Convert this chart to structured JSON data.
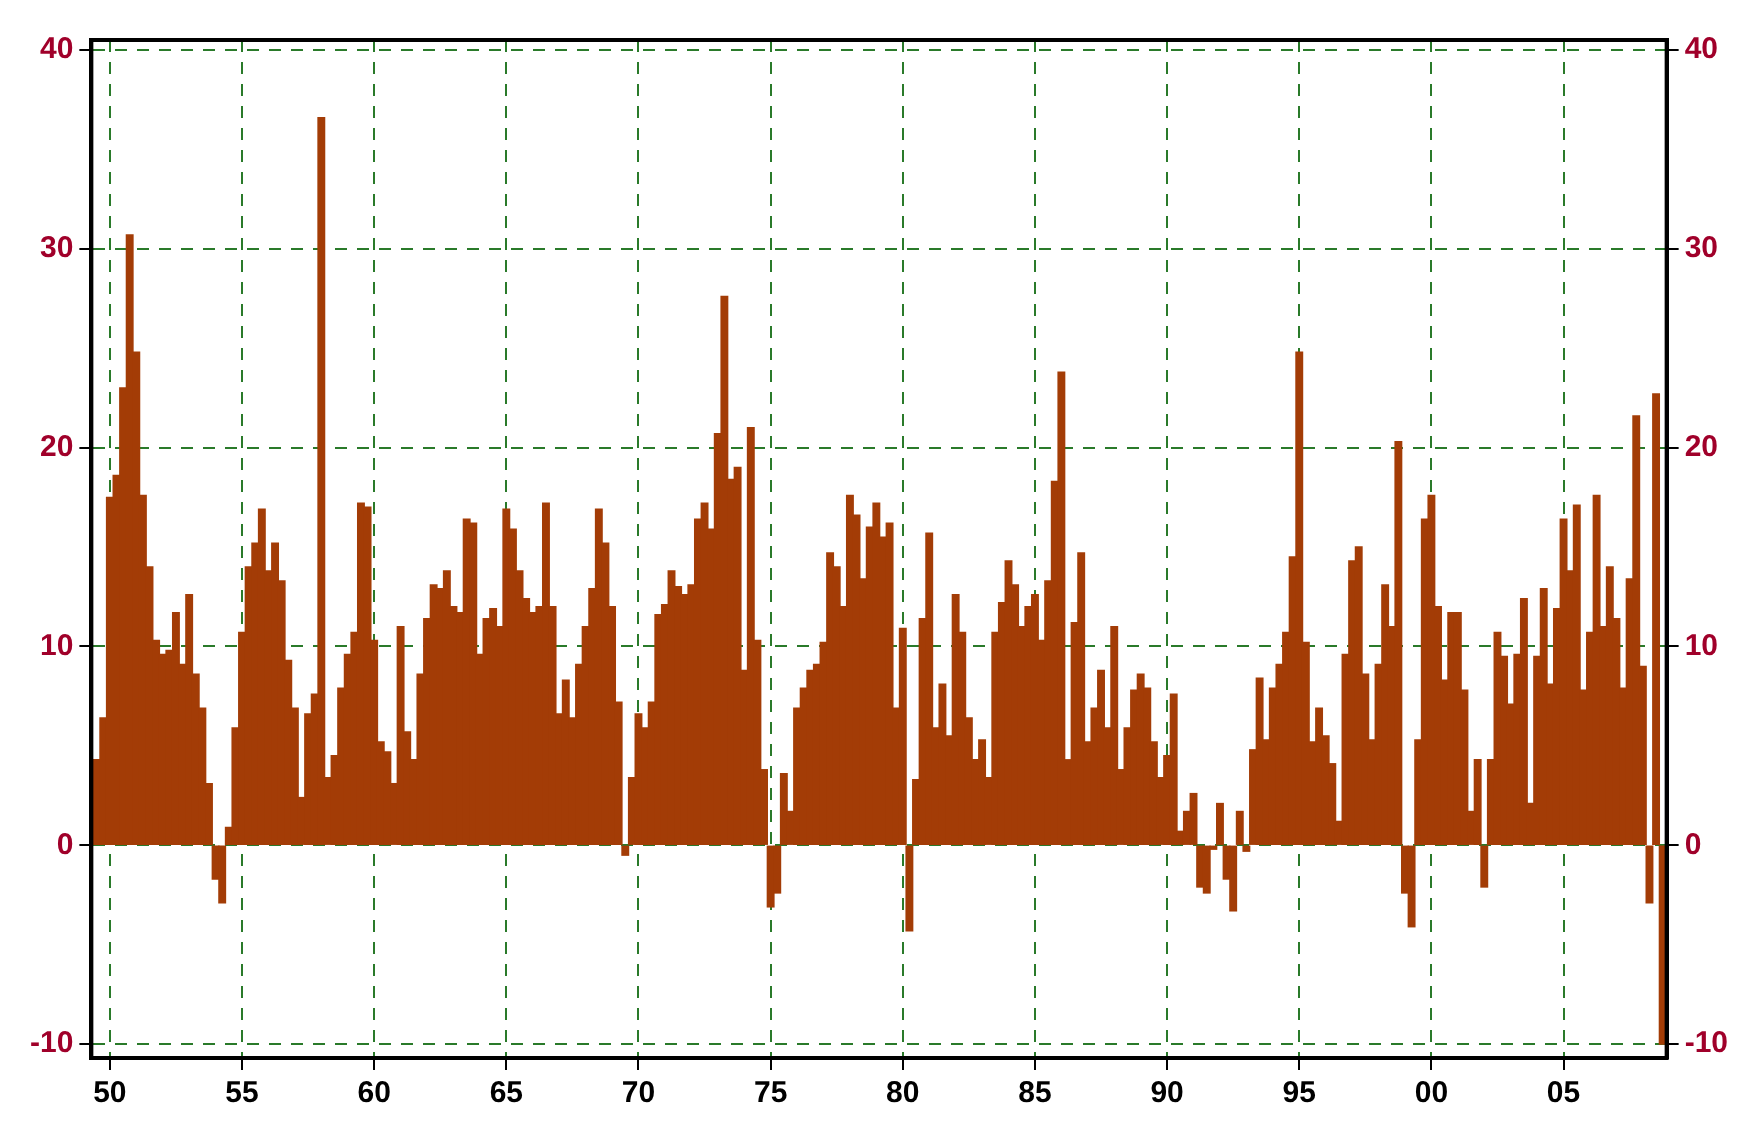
{
  "chart_data": {
    "type": "bar",
    "x": [
      1949.5,
      1949.75,
      1950,
      1950.25,
      1950.5,
      1950.75,
      1951,
      1951.25,
      1951.5,
      1951.75,
      1952,
      1952.25,
      1952.5,
      1952.75,
      1953,
      1953.25,
      1953.5,
      1953.75,
      1954,
      1954.25,
      1954.5,
      1954.75,
      1955,
      1955.25,
      1955.5,
      1955.75,
      1956,
      1956.25,
      1956.5,
      1956.75,
      1957,
      1957.25,
      1957.5,
      1957.75,
      1958,
      1958.25,
      1958.5,
      1958.75,
      1959,
      1959.25,
      1959.5,
      1959.75,
      1960,
      1960.25,
      1960.5,
      1960.75,
      1961,
      1961.25,
      1961.5,
      1961.75,
      1962,
      1962.25,
      1962.5,
      1962.75,
      1963,
      1963.25,
      1963.5,
      1963.75,
      1964,
      1964.25,
      1964.5,
      1964.75,
      1965,
      1965.25,
      1965.5,
      1965.75,
      1966,
      1966.25,
      1966.5,
      1966.75,
      1967,
      1967.25,
      1967.5,
      1967.75,
      1968,
      1968.25,
      1968.5,
      1968.75,
      1969,
      1969.25,
      1969.5,
      1969.75,
      1970,
      1970.25,
      1970.5,
      1970.75,
      1971,
      1971.25,
      1971.5,
      1971.75,
      1972,
      1972.25,
      1972.5,
      1972.75,
      1973,
      1973.25,
      1973.5,
      1973.75,
      1974,
      1974.25,
      1974.5,
      1974.75,
      1975,
      1975.25,
      1975.5,
      1975.75,
      1976,
      1976.25,
      1976.5,
      1976.75,
      1977,
      1977.25,
      1977.5,
      1977.75,
      1978,
      1978.25,
      1978.5,
      1978.75,
      1979,
      1979.25,
      1979.5,
      1979.75,
      1980,
      1980.25,
      1980.5,
      1980.75,
      1981,
      1981.25,
      1981.5,
      1981.75,
      1982,
      1982.25,
      1982.5,
      1982.75,
      1983,
      1983.25,
      1983.5,
      1983.75,
      1984,
      1984.25,
      1984.5,
      1984.75,
      1985,
      1985.25,
      1985.5,
      1985.75,
      1986,
      1986.25,
      1986.5,
      1986.75,
      1987,
      1987.25,
      1987.5,
      1987.75,
      1988,
      1988.25,
      1988.5,
      1988.75,
      1989,
      1989.25,
      1989.5,
      1989.75,
      1990,
      1990.25,
      1990.5,
      1990.75,
      1991,
      1991.25,
      1991.5,
      1991.75,
      1992,
      1992.25,
      1992.5,
      1992.75,
      1993,
      1993.25,
      1993.5,
      1993.75,
      1994,
      1994.25,
      1994.5,
      1994.75,
      1995,
      1995.25,
      1995.5,
      1995.75,
      1996,
      1996.25,
      1996.5,
      1996.75,
      1997,
      1997.25,
      1997.5,
      1997.75,
      1998,
      1998.25,
      1998.5,
      1998.75,
      1999,
      1999.25,
      1999.5,
      1999.75,
      2000,
      2000.25,
      2000.5,
      2000.75,
      2001,
      2001.25,
      2001.5,
      2001.75,
      2002,
      2002.25,
      2002.5,
      2002.75,
      2003,
      2003.25,
      2003.5,
      2003.75,
      2004,
      2004.25,
      2004.5,
      2004.75,
      2005,
      2005.25,
      2005.5,
      2005.75,
      2006,
      2006.25,
      2006.5,
      2006.75,
      2007,
      2007.25,
      2007.5,
      2007.75,
      2008,
      2008.25,
      2008.5,
      2008.75
    ],
    "values": [
      4.3,
      6.4,
      17.5,
      18.6,
      23,
      30.7,
      24.8,
      17.6,
      14,
      10.3,
      9.6,
      9.8,
      11.7,
      9.1,
      12.6,
      8.6,
      6.9,
      3.1,
      -1.7,
      -2.9,
      0.9,
      5.9,
      10.7,
      14,
      15.2,
      16.9,
      13.8,
      15.2,
      13.3,
      9.3,
      6.9,
      2.4,
      6.6,
      7.6,
      36.6,
      3.4,
      4.5,
      7.9,
      9.6,
      10.7,
      17.2,
      17,
      10.3,
      5.2,
      4.7,
      3.1,
      11,
      5.7,
      4.3,
      8.6,
      11.4,
      13.1,
      12.9,
      13.8,
      12,
      11.7,
      16.4,
      16.2,
      9.6,
      11.4,
      11.9,
      11,
      16.9,
      15.9,
      13.8,
      12.4,
      11.7,
      12,
      17.2,
      12,
      6.6,
      8.3,
      6.4,
      9.1,
      11,
      12.9,
      16.9,
      15.2,
      12,
      7.2,
      -0.5,
      3.4,
      6.6,
      5.9,
      7.2,
      11.6,
      12.1,
      13.8,
      13,
      12.6,
      13.1,
      16.4,
      17.2,
      15.9,
      20.7,
      27.6,
      18.4,
      19,
      8.8,
      21,
      10.3,
      3.8,
      -3.1,
      -2.4,
      3.6,
      1.7,
      6.9,
      7.9,
      8.8,
      9.1,
      10.2,
      14.7,
      14,
      12,
      17.6,
      16.6,
      13.4,
      16,
      17.2,
      15.5,
      16.2,
      6.9,
      10.9,
      -4.3,
      3.3,
      11.4,
      15.7,
      5.9,
      8.1,
      5.5,
      12.6,
      10.7,
      6.4,
      4.3,
      5.3,
      3.4,
      10.7,
      12.2,
      14.3,
      13.1,
      11,
      12,
      12.6,
      10.3,
      13.3,
      18.3,
      23.8,
      4.3,
      11.2,
      14.7,
      5.2,
      6.9,
      8.8,
      5.9,
      11,
      3.8,
      5.9,
      7.8,
      8.6,
      7.9,
      5.2,
      3.4,
      4.5,
      7.6,
      0.7,
      1.7,
      2.6,
      -2.1,
      -2.4,
      -0.2,
      2.1,
      -1.7,
      -3.3,
      1.7,
      -0.3,
      4.8,
      8.4,
      5.3,
      7.9,
      9.1,
      10.7,
      14.5,
      24.8,
      10.2,
      5.2,
      6.9,
      5.5,
      4.1,
      1.2,
      9.6,
      14.3,
      15,
      8.6,
      5.3,
      9.1,
      13.1,
      11,
      20.3,
      -2.4,
      -4.1,
      5.3,
      16.4,
      17.6,
      12,
      8.3,
      11.7,
      11.7,
      7.8,
      1.7,
      4.3,
      -2.1,
      4.3,
      10.7,
      9.5,
      7.1,
      9.6,
      12.4,
      2.1,
      9.5,
      12.9,
      8.1,
      11.9,
      16.4,
      13.8,
      17.1,
      7.8,
      10.7,
      17.6,
      11,
      14,
      11.4,
      7.9,
      13.4,
      21.6,
      9,
      -2.9,
      22.7,
      -10
    ],
    "color": "#a33c06",
    "xlim": [
      1949.3,
      2008.9
    ],
    "xticks": [
      {
        "value": 1950,
        "label": "50"
      },
      {
        "value": 1955,
        "label": "55"
      },
      {
        "value": 1960,
        "label": "60"
      },
      {
        "value": 1965,
        "label": "65"
      },
      {
        "value": 1970,
        "label": "70"
      },
      {
        "value": 1975,
        "label": "75"
      },
      {
        "value": 1980,
        "label": "80"
      },
      {
        "value": 1985,
        "label": "85"
      },
      {
        "value": 1990,
        "label": "90"
      },
      {
        "value": 1995,
        "label": "95"
      },
      {
        "value": 2000,
        "label": "00"
      },
      {
        "value": 2005,
        "label": "05"
      }
    ],
    "ylim": [
      -10.7,
      40.5
    ],
    "yticks": [
      -10,
      0,
      10,
      20,
      30,
      40
    ],
    "y2lim": [
      -10.7,
      40.5
    ],
    "y2ticks": [
      -10,
      0,
      10,
      20,
      30,
      40
    ],
    "grid": true
  }
}
